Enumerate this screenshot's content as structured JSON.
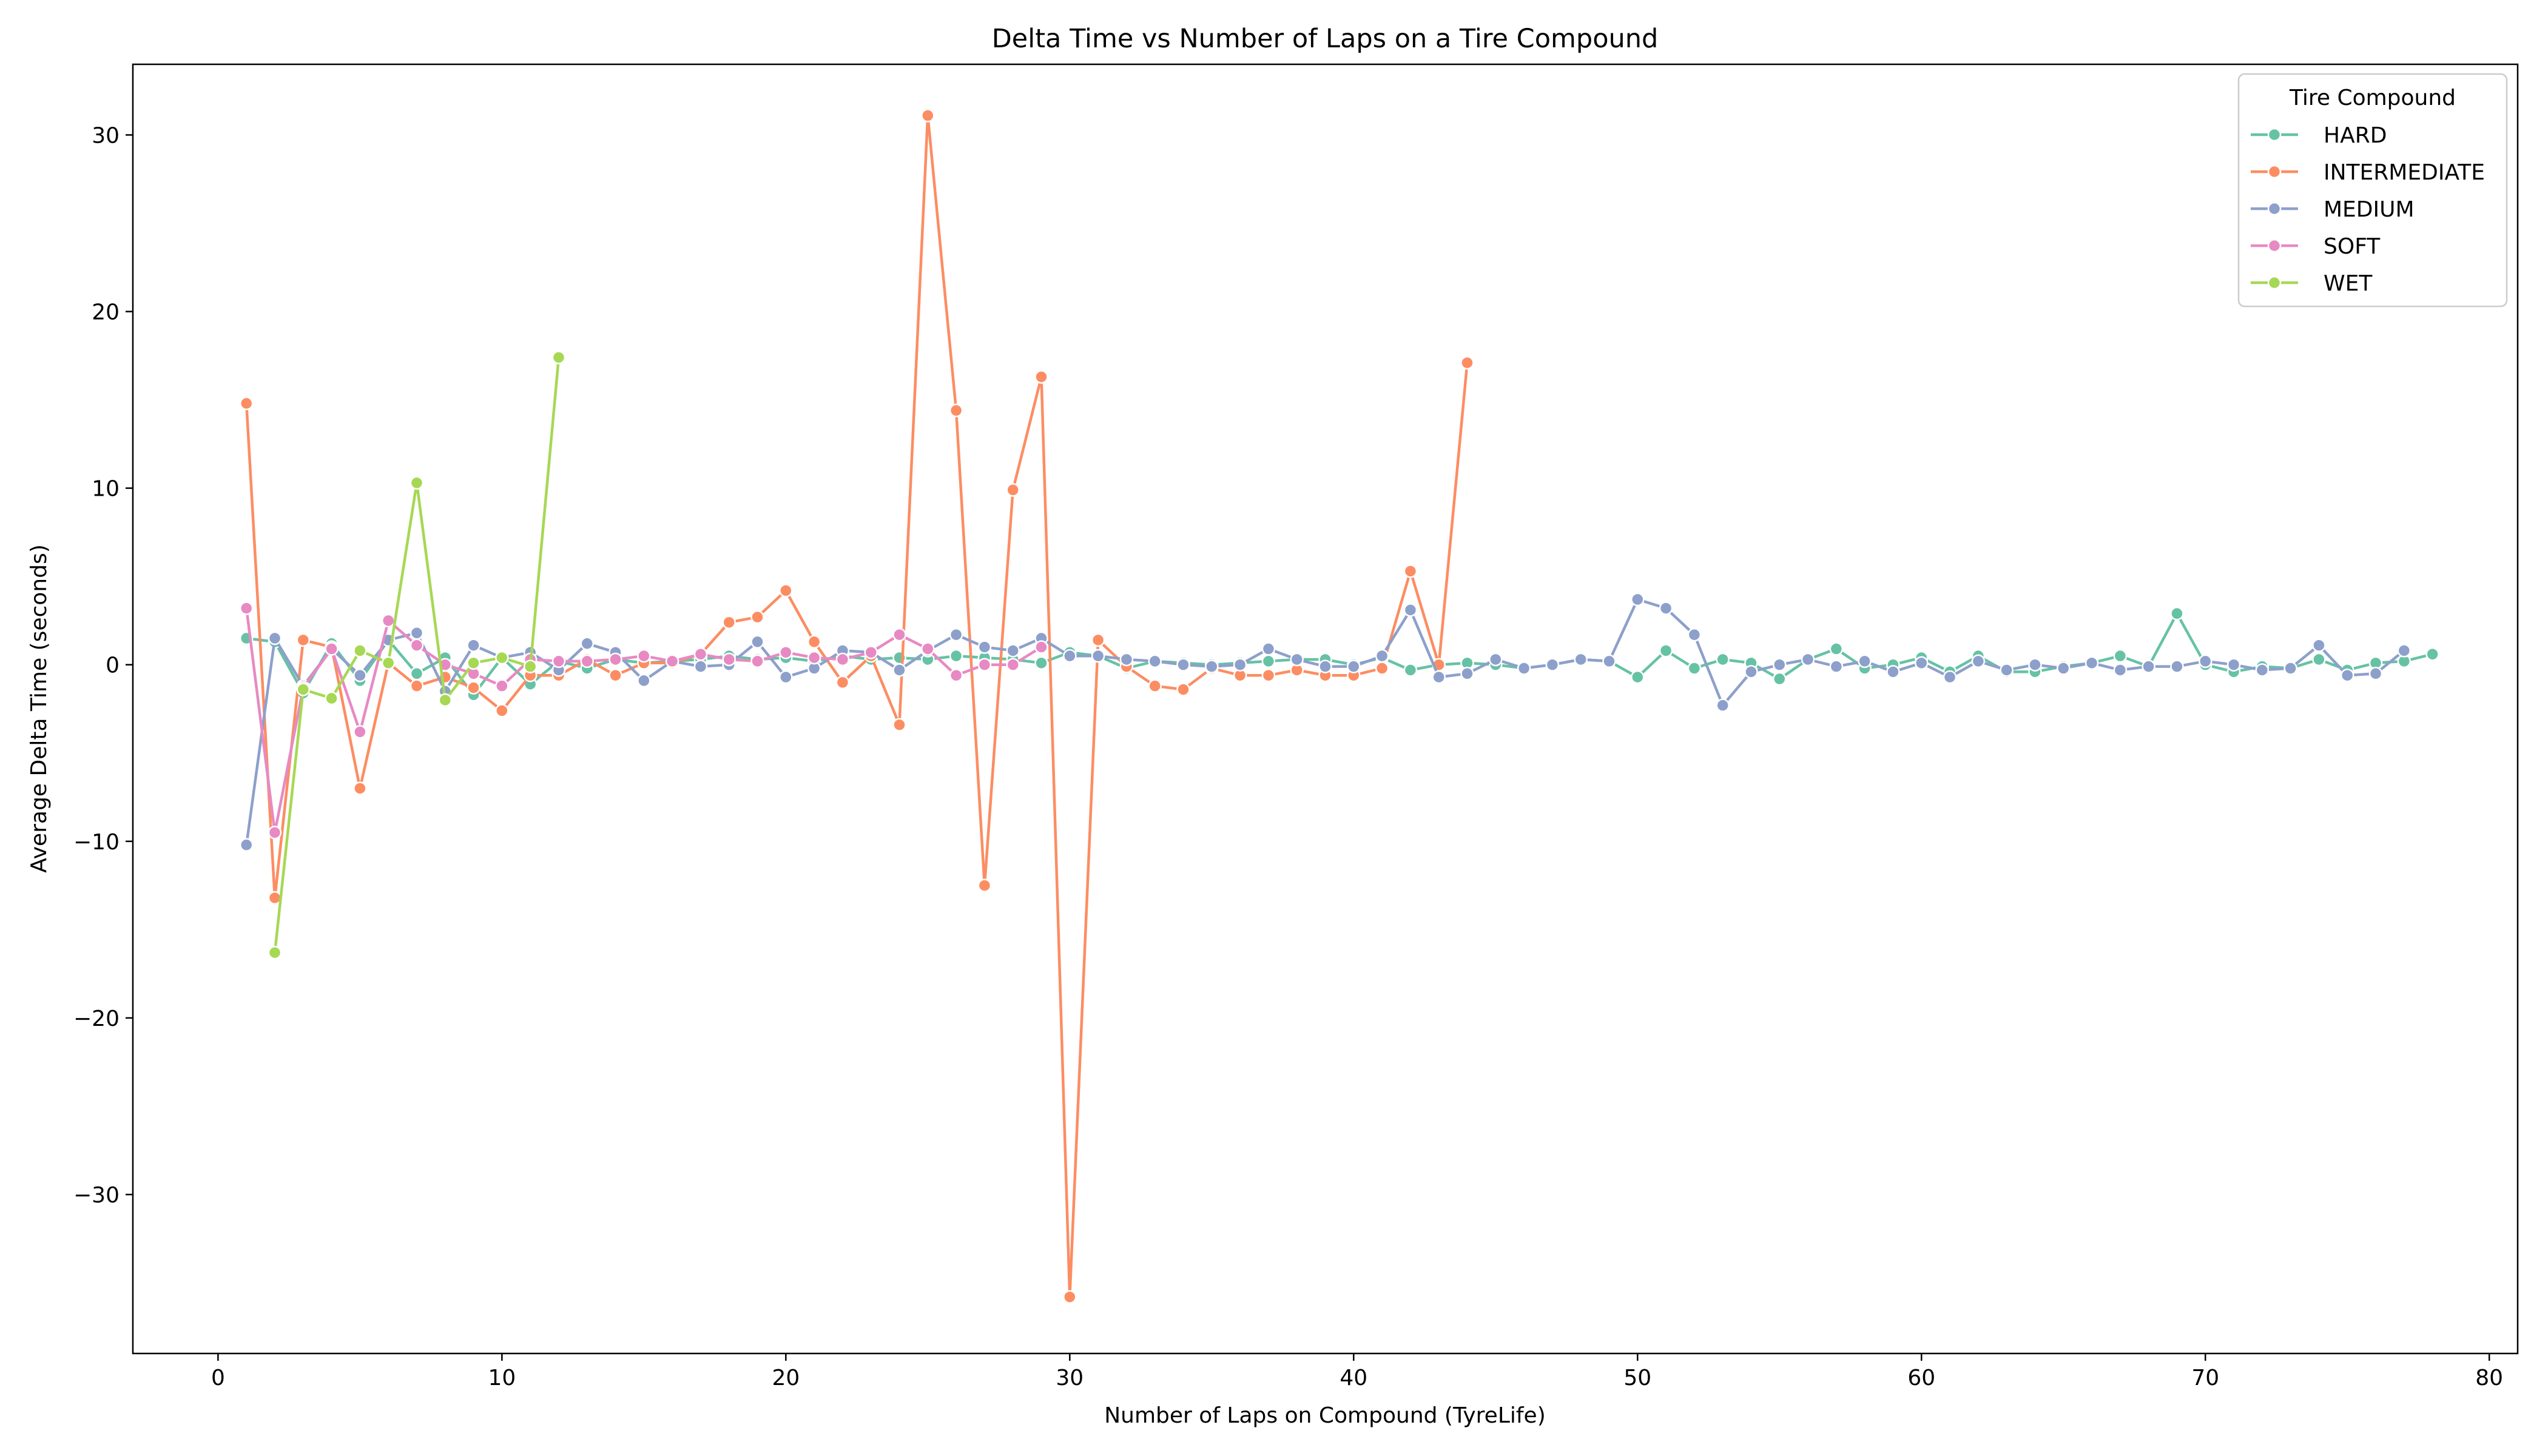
{
  "chart_data": {
    "type": "line",
    "title": "Delta Time vs Number of Laps on a Tire Compound",
    "xlabel": "Number of Laps on Compound (TyreLife)",
    "ylabel": "Average Delta Time (seconds)",
    "xlim": [
      -3,
      81
    ],
    "ylim": [
      -39,
      34
    ],
    "xticks": [
      0,
      10,
      20,
      30,
      40,
      50,
      60,
      70,
      80
    ],
    "yticks": [
      -30,
      -20,
      -10,
      0,
      10,
      20,
      30
    ],
    "yticklabels": [
      "−30",
      "−20",
      "−10",
      "0",
      "10",
      "20",
      "30"
    ],
    "grid": false,
    "legend": {
      "title": "Tire Compound",
      "position": "top-right"
    },
    "series": [
      {
        "name": "HARD",
        "color": "#66c2a5",
        "x": [
          1,
          2,
          3,
          4,
          5,
          6,
          7,
          8,
          9,
          10,
          11,
          12,
          13,
          14,
          15,
          16,
          17,
          18,
          19,
          20,
          21,
          22,
          23,
          24,
          25,
          26,
          27,
          28,
          29,
          30,
          31,
          32,
          33,
          34,
          35,
          36,
          37,
          38,
          39,
          40,
          41,
          42,
          43,
          44,
          45,
          46,
          47,
          48,
          49,
          50,
          51,
          52,
          53,
          54,
          55,
          56,
          57,
          58,
          59,
          60,
          61,
          62,
          63,
          64,
          65,
          66,
          67,
          68,
          69,
          70,
          71,
          72,
          73,
          74,
          75,
          76,
          77,
          78
        ],
        "y": [
          1.5,
          1.3,
          -1.6,
          1.2,
          -0.9,
          1.4,
          -0.5,
          0.4,
          -1.7,
          0.4,
          -1.1,
          0.2,
          -0.2,
          0.3,
          0.1,
          0.2,
          0.3,
          0.5,
          0.3,
          0.4,
          0.2,
          0.5,
          0.3,
          0.4,
          0.3,
          0.5,
          0.4,
          0.3,
          0.1,
          0.7,
          0.5,
          -0.2,
          0.2,
          0.1,
          0.0,
          0.1,
          0.2,
          0.3,
          0.3,
          0.0,
          0.4,
          -0.3,
          0.0,
          0.1,
          0.0,
          -0.2,
          0.0,
          0.3,
          0.2,
          -0.7,
          0.8,
          -0.2,
          0.3,
          0.1,
          -0.8,
          0.3,
          0.9,
          -0.2,
          0.0,
          0.4,
          -0.4,
          0.5,
          -0.4,
          -0.4,
          -0.1,
          0.1,
          0.5,
          -0.1,
          2.9,
          0.0,
          -0.4,
          -0.1,
          -0.2,
          0.3,
          -0.3,
          0.1,
          0.2,
          0.6
        ]
      },
      {
        "name": "INTERMEDIATE",
        "color": "#fc8d62",
        "x": [
          1,
          2,
          3,
          4,
          5,
          6,
          7,
          8,
          9,
          10,
          11,
          12,
          13,
          14,
          15,
          16,
          17,
          18,
          19,
          20,
          21,
          22,
          23,
          24,
          25,
          26,
          27,
          28,
          29,
          30,
          31,
          32,
          33,
          34,
          35,
          36,
          37,
          38,
          39,
          40,
          41,
          42,
          43,
          44
        ],
        "y": [
          14.8,
          -13.2,
          1.4,
          1.0,
          -7.0,
          0.1,
          -1.2,
          -0.7,
          -1.3,
          -2.6,
          -0.6,
          -0.6,
          0.3,
          -0.6,
          0.1,
          0.1,
          0.6,
          2.4,
          2.7,
          4.2,
          1.3,
          -1.0,
          0.5,
          -3.4,
          31.1,
          14.4,
          -12.5,
          9.9,
          16.3,
          -35.8,
          1.4,
          -0.1,
          -1.2,
          -1.4,
          -0.2,
          -0.6,
          -0.6,
          -0.3,
          -0.6,
          -0.6,
          -0.2,
          5.3,
          0.0,
          17.1
        ]
      },
      {
        "name": "MEDIUM",
        "color": "#8da0cb",
        "x": [
          1,
          2,
          3,
          4,
          5,
          6,
          7,
          8,
          9,
          10,
          11,
          12,
          13,
          14,
          15,
          16,
          17,
          18,
          19,
          20,
          21,
          22,
          23,
          24,
          25,
          26,
          27,
          28,
          29,
          30,
          31,
          32,
          33,
          34,
          35,
          36,
          37,
          38,
          39,
          40,
          41,
          42,
          43,
          44,
          45,
          46,
          47,
          48,
          49,
          50,
          51,
          52,
          53,
          54,
          55,
          56,
          57,
          58,
          59,
          60,
          61,
          62,
          63,
          64,
          65,
          66,
          67,
          68,
          69,
          70,
          71,
          72,
          73,
          74,
          75,
          76,
          77
        ],
        "y": [
          -10.2,
          1.5,
          -1.2,
          0.9,
          -0.6,
          1.4,
          1.8,
          -1.5,
          1.1,
          0.4,
          0.7,
          -0.3,
          1.2,
          0.7,
          -0.9,
          0.2,
          -0.1,
          0.0,
          1.3,
          -0.7,
          -0.2,
          0.8,
          0.7,
          -0.3,
          0.8,
          1.7,
          1.0,
          0.8,
          1.5,
          0.5,
          0.5,
          0.3,
          0.2,
          0.0,
          -0.1,
          0.0,
          0.9,
          0.3,
          -0.1,
          -0.1,
          0.5,
          3.1,
          -0.7,
          -0.5,
          0.3,
          -0.2,
          0.0,
          0.3,
          0.2,
          3.7,
          3.2,
          1.7,
          -2.3,
          -0.4,
          0.0,
          0.3,
          -0.1,
          0.2,
          -0.4,
          0.1,
          -0.7,
          0.2,
          -0.3,
          0.0,
          -0.2,
          0.1,
          -0.3,
          -0.1,
          -0.1,
          0.2,
          0.0,
          -0.3,
          -0.2,
          1.1,
          -0.6,
          -0.5,
          0.8
        ]
      },
      {
        "name": "SOFT",
        "color": "#e78ac3",
        "x": [
          1,
          2,
          3,
          4,
          5,
          6,
          7,
          8,
          9,
          10,
          11,
          12,
          13,
          14,
          15,
          16,
          17,
          18,
          19,
          20,
          21,
          22,
          23,
          24,
          25,
          26,
          27,
          28,
          29
        ],
        "y": [
          3.2,
          -9.5,
          -1.3,
          0.9,
          -3.8,
          2.5,
          1.1,
          0.0,
          -0.5,
          -1.2,
          0.3,
          0.2,
          0.2,
          0.3,
          0.5,
          0.2,
          0.6,
          0.3,
          0.2,
          0.7,
          0.4,
          0.3,
          0.7,
          1.7,
          0.9,
          -0.6,
          0.0,
          0.0,
          1.0
        ]
      },
      {
        "name": "WET",
        "color": "#a6d854",
        "x": [
          2,
          3,
          4,
          5,
          6,
          7,
          8,
          9,
          10,
          11,
          12
        ],
        "y": [
          -16.3,
          -1.4,
          -1.9,
          0.8,
          0.1,
          10.3,
          -2.0,
          0.1,
          0.4,
          -0.1,
          17.4
        ]
      }
    ]
  }
}
